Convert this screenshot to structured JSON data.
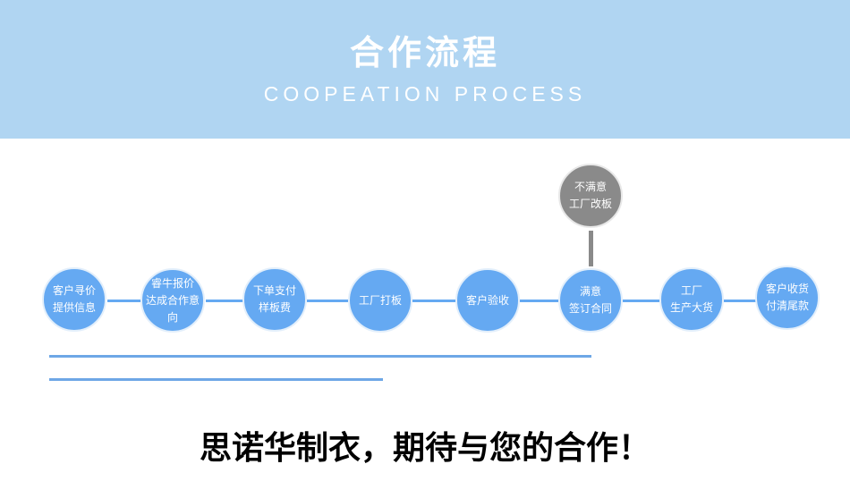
{
  "header": {
    "title": "合作流程",
    "subtitle": "COOPEATION PROCESS"
  },
  "steps": [
    "客户寻价\n提供信息",
    "睿牛报价\n达成合作意向",
    "下单支付\n样板费",
    "工厂打板",
    "客户验收",
    "满意\n签订合同",
    "工厂\n生产大货",
    "客户收货\n付清尾款"
  ],
  "branch": "不满意\n工厂改板",
  "slogan": "思诺华制衣，期待与您的合作！",
  "colors": {
    "header": "#b0d5f2",
    "step": "#65a9f2",
    "branch": "#8a8a8a"
  }
}
